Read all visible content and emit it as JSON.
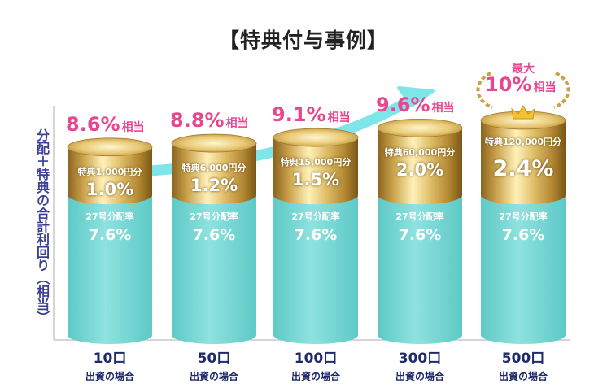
{
  "title": "【特典付与事例】",
  "y_label": "分配＋特典の合計利回り（相当）",
  "colors": {
    "accent_pink": "#e8478f",
    "teal": "#76d5d3",
    "gold": "#c9a14a",
    "arrow": "#7ee6e8",
    "label_navy": "#1f2a6b"
  },
  "chart_data": {
    "type": "bar",
    "title": "【特典付与事例】",
    "ylabel": "分配＋特典の合計利回り（相当）",
    "xlabel": "",
    "ylim": [
      0,
      10
    ],
    "categories": [
      "10口",
      "50口",
      "100口",
      "300口",
      "500口"
    ],
    "category_subtitle": "出資の場合",
    "distribution_label": "27号分配率",
    "total_suffix": "相当",
    "max_label": "最大",
    "bars": [
      {
        "units": "10口",
        "distribution": 7.6,
        "distribution_text": "7.6%",
        "bonus": 1.0,
        "bonus_text": "1.0%",
        "bonus_label": "特典1,000円分",
        "total": 8.6,
        "total_text": "8.6%"
      },
      {
        "units": "50口",
        "distribution": 7.6,
        "distribution_text": "7.6%",
        "bonus": 1.2,
        "bonus_text": "1.2%",
        "bonus_label": "特典6,000円分",
        "total": 8.8,
        "total_text": "8.8%"
      },
      {
        "units": "100口",
        "distribution": 7.6,
        "distribution_text": "7.6%",
        "bonus": 1.5,
        "bonus_text": "1.5%",
        "bonus_label": "特典15,000円分",
        "total": 9.1,
        "total_text": "9.1%"
      },
      {
        "units": "300口",
        "distribution": 7.6,
        "distribution_text": "7.6%",
        "bonus": 2.0,
        "bonus_text": "2.0%",
        "bonus_label": "特典60,000円分",
        "total": 9.6,
        "total_text": "9.6%"
      },
      {
        "units": "500口",
        "distribution": 7.6,
        "distribution_text": "7.6%",
        "bonus": 2.4,
        "bonus_text": "2.4%",
        "bonus_label": "特典120,000円分",
        "total": 10,
        "total_text": "10%",
        "is_max": true
      }
    ],
    "grid": false,
    "legend": "none"
  }
}
